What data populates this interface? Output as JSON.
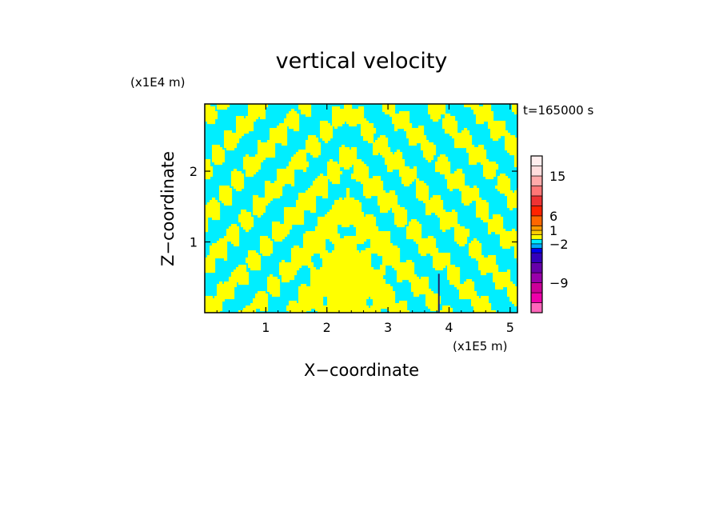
{
  "chart_data": {
    "type": "heatmap",
    "title": "vertical velocity",
    "xlabel": "X−coordinate",
    "ylabel": "Z−coordinate",
    "x_unit": "(x1E5 m)",
    "y_unit": "(x1E4 m)",
    "time_label": "t=165000 s",
    "xlim": [
      0,
      5.12
    ],
    "ylim": [
      0,
      2.95
    ],
    "x_ticks": [
      "1",
      "2",
      "3",
      "4",
      "5"
    ],
    "x_tick_values": [
      1,
      2,
      3,
      4,
      5
    ],
    "y_ticks": [
      "1",
      "2"
    ],
    "y_tick_values": [
      1,
      2
    ],
    "grid": false,
    "field_colors": {
      "positive": "#ffff00",
      "negative": "#00eeff",
      "strong_negative": "#222266"
    },
    "colorbar": {
      "placement": "right",
      "levels": [
        {
          "color": "#ff66bb"
        },
        {
          "color": "#ee00aa"
        },
        {
          "color": "#cc0099"
        },
        {
          "color": "#9900aa"
        },
        {
          "color": "#6600aa"
        },
        {
          "color": "#3300bb"
        },
        {
          "color": "#0000ee"
        },
        {
          "color": "#00aaff"
        },
        {
          "color": "#00eeff"
        },
        {
          "color": "#ffff00"
        },
        {
          "color": "#ffcc00"
        },
        {
          "color": "#ff9900"
        },
        {
          "color": "#ff6600"
        },
        {
          "color": "#ff2200"
        },
        {
          "color": "#ee3333"
        },
        {
          "color": "#ff7777"
        },
        {
          "color": "#ffaaaa"
        },
        {
          "color": "#ffdddd"
        },
        {
          "color": "#ffeeee"
        }
      ],
      "tick_labels": [
        "15",
        "6",
        "1",
        "−2",
        "−9"
      ],
      "tick_values": [
        15,
        6,
        1,
        -2,
        -9
      ]
    }
  }
}
